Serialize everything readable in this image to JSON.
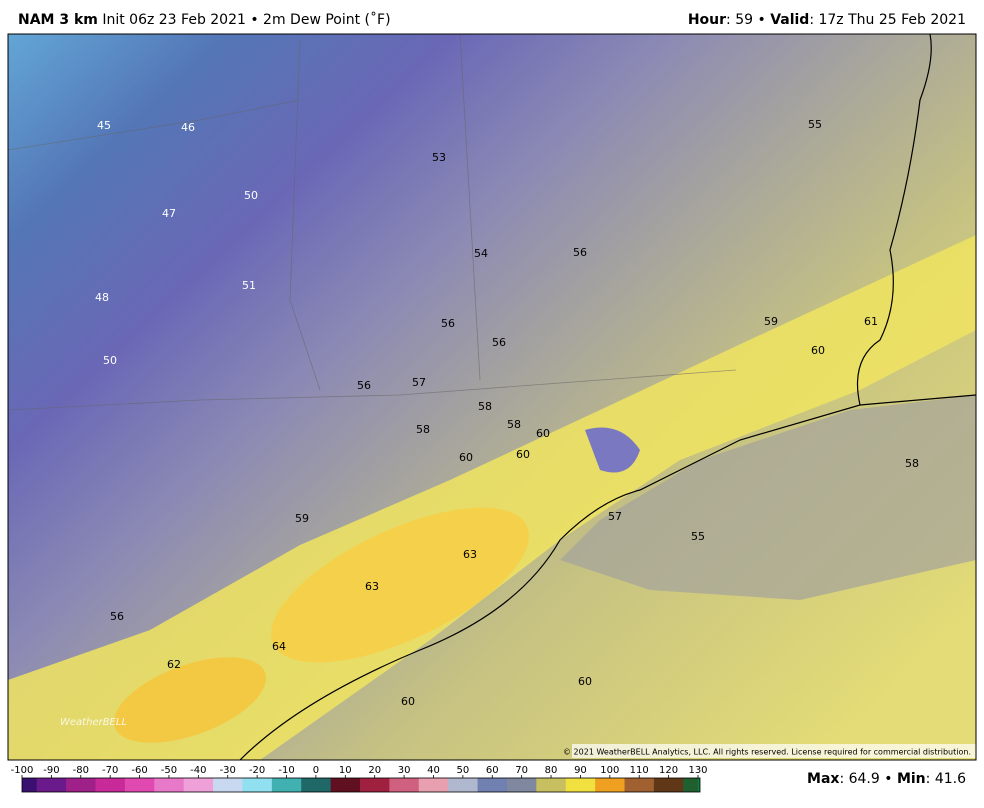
{
  "header": {
    "title": "NAM 3 km",
    "subtitle": "Init 06z 23 Feb 2021 • 2m Dew Point (˚F)",
    "hour_label": "Hour",
    "hour_value": ": 59 • ",
    "valid_label": "Valid",
    "valid_value": ": 17z Thu 25 Feb 2021"
  },
  "map_labels": [
    45,
    46,
    53,
    55,
    50,
    47,
    54,
    56,
    48,
    51,
    59,
    61,
    56,
    56,
    60,
    50,
    56,
    57,
    58,
    58,
    58,
    60,
    60,
    60,
    58,
    59,
    57,
    55,
    63,
    63,
    56,
    64,
    62,
    60,
    60
  ],
  "watermark": "WeatherBELL",
  "copyright": "© 2021 WeatherBELL Analytics, LLC. All rights reserved. License required for commercial distribution.",
  "colorbar": {
    "lim": [
      -100,
      130
    ],
    "ticks": [
      -100,
      -90,
      -80,
      -70,
      -60,
      -50,
      -40,
      -30,
      -20,
      -10,
      0,
      10,
      20,
      30,
      40,
      50,
      60,
      70,
      80,
      90,
      100,
      110,
      120,
      130
    ]
  },
  "footer": {
    "max_label": "Max",
    "max_value": ": 64.9 • ",
    "min_label": "Min",
    "min_value": ": 41.6"
  }
}
